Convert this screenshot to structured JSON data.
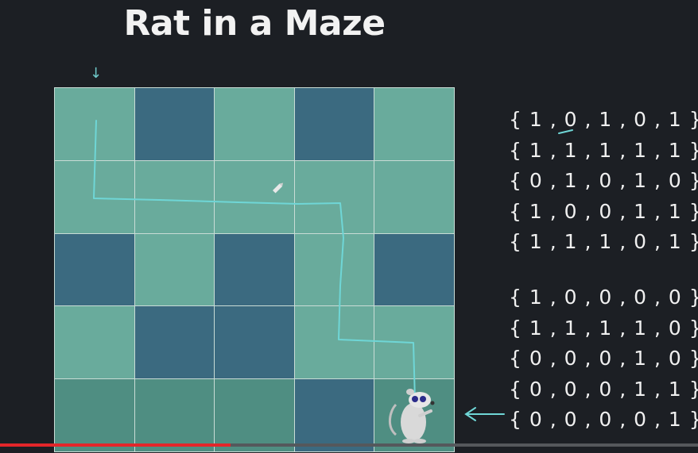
{
  "title": "Rat in a Maze",
  "entry_arrow": "↓",
  "maze": {
    "rows": 5,
    "cols": 5,
    "cells": [
      [
        1,
        0,
        1,
        0,
        1
      ],
      [
        1,
        1,
        1,
        1,
        1
      ],
      [
        0,
        1,
        0,
        1,
        0
      ],
      [
        1,
        0,
        0,
        1,
        1
      ],
      [
        1,
        1,
        1,
        0,
        1
      ]
    ]
  },
  "input_matrix": [
    "{1,0,1,0,1}",
    "{1,1,1,1,1}",
    "{0,1,0,1,0}",
    "{1,0,0,1,1}",
    "{1,1,1,0,1}"
  ],
  "solution_matrix": [
    "{1,0,0,0,0}",
    "{1,1,1,1,0}",
    "{0,0,0,1,0}",
    "{0,0,0,1,1}",
    "{0,0,0,0,1}"
  ],
  "video": {
    "progress_percent": 33
  },
  "colors": {
    "open_cell": "#69ab9c",
    "wall_cell": "#3b6a80",
    "path": "#6fd6d6",
    "progress": "#e3262a"
  },
  "icons": {
    "rat": "rat-illustration",
    "pointer": "left-arrow-icon"
  }
}
